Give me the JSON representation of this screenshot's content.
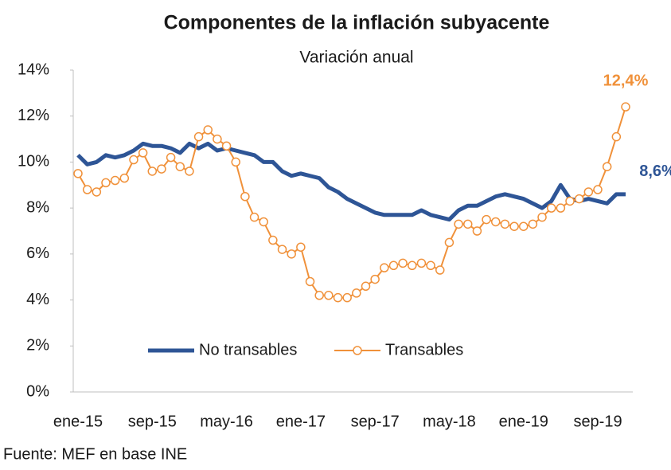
{
  "chart_data": {
    "type": "line",
    "title": "Componentes de la inflación subyacente",
    "subtitle": "Variación anual",
    "source": "Fuente:  MEF en base INE",
    "categories": [
      "ene-15",
      null,
      null,
      null,
      null,
      null,
      null,
      null,
      "sep-15",
      null,
      null,
      null,
      null,
      null,
      null,
      null,
      "may-16",
      null,
      null,
      null,
      null,
      null,
      null,
      null,
      "ene-17",
      null,
      null,
      null,
      null,
      null,
      null,
      null,
      "sep-17",
      null,
      null,
      null,
      null,
      null,
      null,
      null,
      "may-18",
      null,
      null,
      null,
      null,
      null,
      null,
      null,
      "ene-19",
      null,
      null,
      null,
      null,
      null,
      null,
      null,
      "sep-19",
      null,
      null,
      null
    ],
    "series": [
      {
        "name": "No transables",
        "color": "#2e5596",
        "marker": false,
        "values": [
          10.3,
          9.9,
          10.0,
          10.3,
          10.2,
          10.3,
          10.5,
          10.8,
          10.7,
          10.7,
          10.6,
          10.4,
          10.8,
          10.6,
          10.8,
          10.5,
          10.6,
          10.5,
          10.4,
          10.3,
          10.0,
          10.0,
          9.6,
          9.4,
          9.5,
          9.4,
          9.3,
          8.9,
          8.7,
          8.4,
          8.2,
          8.0,
          7.8,
          7.7,
          7.7,
          7.7,
          7.7,
          7.9,
          7.7,
          7.6,
          7.5,
          7.9,
          8.1,
          8.1,
          8.3,
          8.5,
          8.6,
          8.5,
          8.4,
          8.2,
          8.0,
          8.3,
          9.0,
          8.4,
          8.3,
          8.4,
          8.3,
          8.2,
          8.6,
          8.6
        ],
        "value_labels": [
          null,
          null,
          null,
          null,
          null,
          null,
          null,
          null,
          null,
          null,
          null,
          null,
          null,
          null,
          null,
          null,
          null,
          null,
          null,
          null,
          null,
          null,
          null,
          null,
          null,
          null,
          null,
          null,
          null,
          null,
          null,
          null,
          null,
          null,
          null,
          null,
          null,
          null,
          null,
          null,
          null,
          null,
          null,
          null,
          null,
          null,
          null,
          null,
          null,
          null,
          null,
          null,
          null,
          null,
          null,
          null,
          null,
          null,
          null,
          "8,6%"
        ]
      },
      {
        "name": "Transables",
        "color": "#f0913a",
        "marker": true,
        "values": [
          9.5,
          8.8,
          8.7,
          9.1,
          9.2,
          9.3,
          10.1,
          10.4,
          9.6,
          9.7,
          10.2,
          9.8,
          9.6,
          11.1,
          11.4,
          11.0,
          10.7,
          10.0,
          8.5,
          7.6,
          7.4,
          6.6,
          6.2,
          6.0,
          6.3,
          4.8,
          4.2,
          4.2,
          4.1,
          4.1,
          4.3,
          4.6,
          4.9,
          5.4,
          5.5,
          5.6,
          5.5,
          5.6,
          5.5,
          5.3,
          6.5,
          7.3,
          7.3,
          7.0,
          7.5,
          7.4,
          7.3,
          7.2,
          7.2,
          7.3,
          7.6,
          8.0,
          8.0,
          8.3,
          8.4,
          8.7,
          8.8,
          9.8,
          11.1,
          12.4
        ],
        "value_labels": [
          null,
          null,
          null,
          null,
          null,
          null,
          null,
          null,
          null,
          null,
          null,
          null,
          null,
          null,
          null,
          null,
          null,
          null,
          null,
          null,
          null,
          null,
          null,
          null,
          null,
          null,
          null,
          null,
          null,
          null,
          null,
          null,
          null,
          null,
          null,
          null,
          null,
          null,
          null,
          null,
          null,
          null,
          null,
          null,
          null,
          null,
          null,
          null,
          null,
          null,
          null,
          null,
          null,
          null,
          null,
          null,
          null,
          null,
          null,
          "12,4%"
        ]
      }
    ],
    "ylim": [
      0,
      14
    ],
    "yticks": [
      {
        "value": 0,
        "label": "0%"
      },
      {
        "value": 2,
        "label": "2%"
      },
      {
        "value": 4,
        "label": "4%"
      },
      {
        "value": 6,
        "label": "6%"
      },
      {
        "value": 8,
        "label": "8%"
      },
      {
        "value": 10,
        "label": "10%"
      },
      {
        "value": 12,
        "label": "12%"
      },
      {
        "value": 14,
        "label": "14%"
      }
    ],
    "grid": false,
    "legend": "bottom"
  }
}
